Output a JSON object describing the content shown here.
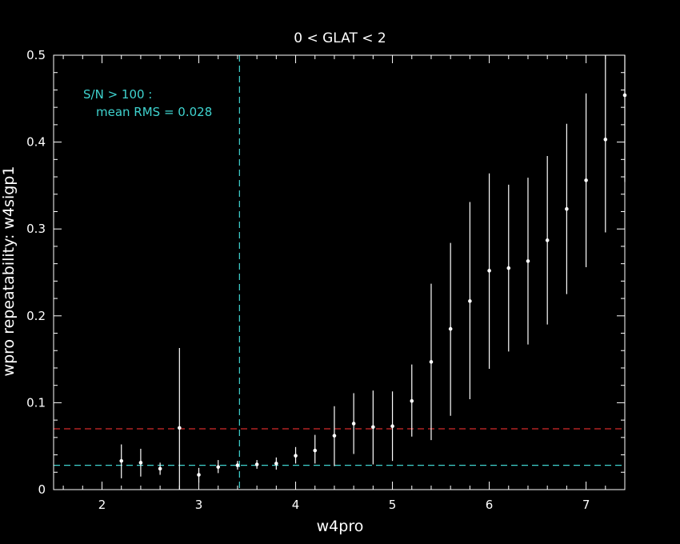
{
  "chart_data": {
    "type": "scatter",
    "title": "0  <  GLAT  <  2",
    "xlabel": "w4pro",
    "ylabel": "wpro repeatability:  w4sigp1",
    "xlim": [
      1.5,
      7.4
    ],
    "ylim": [
      0,
      0.5
    ],
    "xticks": [
      2,
      3,
      4,
      5,
      6,
      7
    ],
    "xtick_labels": [
      "2",
      "3",
      "4",
      "5",
      "6",
      "7"
    ],
    "yticks": [
      0,
      0.1,
      0.2,
      0.3,
      0.4,
      0.5
    ],
    "ytick_labels": [
      "0",
      "0.1",
      "0.2",
      "0.3",
      "0.4",
      "0.5"
    ],
    "grid": false,
    "annotation": {
      "line1": "S/N > 100 :",
      "line2": "mean RMS =  0.028"
    },
    "reference_lines": [
      {
        "orientation": "horizontal",
        "value": 0.07,
        "color": "#d42a2a",
        "style": "dashed"
      },
      {
        "orientation": "horizontal",
        "value": 0.028,
        "color": "#3fd3cf",
        "style": "dashed"
      },
      {
        "orientation": "vertical",
        "value": 3.42,
        "color": "#3fd3cf",
        "style": "dashed"
      }
    ],
    "series": [
      {
        "points": [
          {
            "x": 2.2,
            "y": 0.033,
            "lo": 0.013,
            "hi": 0.052
          },
          {
            "x": 2.4,
            "y": 0.031,
            "lo": 0.015,
            "hi": 0.047
          },
          {
            "x": 2.6,
            "y": 0.024,
            "lo": 0.017,
            "hi": 0.031
          },
          {
            "x": 2.8,
            "y": 0.071,
            "lo": 0.0,
            "hi": 0.163
          },
          {
            "x": 3.0,
            "y": 0.017,
            "lo": 0.008,
            "hi": 0.025
          },
          {
            "x": 3.2,
            "y": 0.026,
            "lo": 0.019,
            "hi": 0.034
          },
          {
            "x": 3.4,
            "y": 0.028,
            "lo": 0.023,
            "hi": 0.033
          },
          {
            "x": 3.6,
            "y": 0.029,
            "lo": 0.024,
            "hi": 0.034
          },
          {
            "x": 3.8,
            "y": 0.03,
            "lo": 0.023,
            "hi": 0.037
          },
          {
            "x": 4.0,
            "y": 0.039,
            "lo": 0.03,
            "hi": 0.049
          },
          {
            "x": 4.2,
            "y": 0.045,
            "lo": 0.03,
            "hi": 0.063
          },
          {
            "x": 4.4,
            "y": 0.062,
            "lo": 0.027,
            "hi": 0.096
          },
          {
            "x": 4.6,
            "y": 0.076,
            "lo": 0.041,
            "hi": 0.111
          },
          {
            "x": 4.8,
            "y": 0.072,
            "lo": 0.029,
            "hi": 0.114
          },
          {
            "x": 5.0,
            "y": 0.073,
            "lo": 0.033,
            "hi": 0.113
          },
          {
            "x": 5.2,
            "y": 0.102,
            "lo": 0.061,
            "hi": 0.144
          },
          {
            "x": 5.4,
            "y": 0.147,
            "lo": 0.057,
            "hi": 0.237
          },
          {
            "x": 5.6,
            "y": 0.185,
            "lo": 0.085,
            "hi": 0.284
          },
          {
            "x": 5.8,
            "y": 0.217,
            "lo": 0.104,
            "hi": 0.331
          },
          {
            "x": 6.0,
            "y": 0.252,
            "lo": 0.139,
            "hi": 0.364
          },
          {
            "x": 6.2,
            "y": 0.255,
            "lo": 0.159,
            "hi": 0.351
          },
          {
            "x": 6.4,
            "y": 0.263,
            "lo": 0.167,
            "hi": 0.359
          },
          {
            "x": 6.6,
            "y": 0.287,
            "lo": 0.19,
            "hi": 0.384
          },
          {
            "x": 6.8,
            "y": 0.323,
            "lo": 0.225,
            "hi": 0.421
          },
          {
            "x": 7.0,
            "y": 0.356,
            "lo": 0.256,
            "hi": 0.456
          },
          {
            "x": 7.2,
            "y": 0.403,
            "lo": 0.296,
            "hi": 0.5
          },
          {
            "x": 7.4,
            "y": 0.454,
            "lo": 0.354,
            "hi": 0.5
          }
        ]
      }
    ]
  },
  "colors": {
    "background": "#000000",
    "foreground": "#ffffff",
    "cyan": "#3fd3cf",
    "red": "#d42a2a"
  }
}
